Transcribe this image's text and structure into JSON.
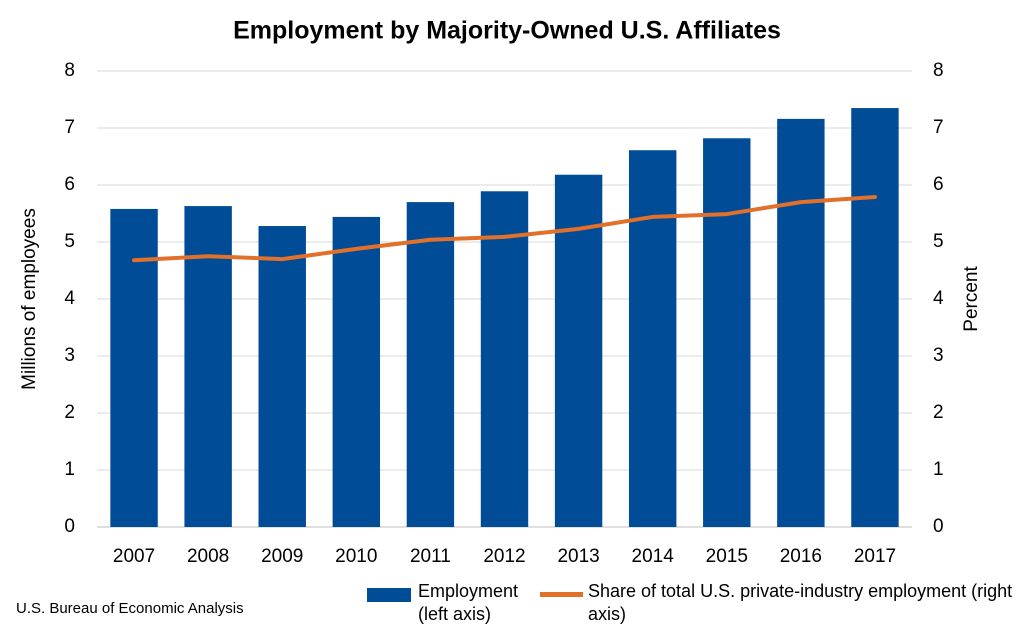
{
  "chart_data": {
    "type": "bar-line",
    "title": "Employment by Majority-Owned U.S. Affiliates",
    "y_label": "Millions of employees",
    "y2_label": "Percent",
    "source": "U.S. Bureau of Economic Analysis",
    "categories": [
      "2007",
      "2008",
      "2009",
      "2010",
      "2011",
      "2012",
      "2013",
      "2014",
      "2015",
      "2016",
      "2017"
    ],
    "series": [
      {
        "name": "Employment (left axis)",
        "type": "bar",
        "color": "#004c97",
        "values": [
          5.58,
          5.63,
          5.28,
          5.44,
          5.7,
          5.89,
          6.18,
          6.61,
          6.82,
          7.16,
          7.35
        ]
      },
      {
        "name": "Share of total U.S. private-industry employment (right axis)",
        "type": "line",
        "axis": "y2",
        "color": "#e0702a",
        "values": [
          4.68,
          4.75,
          4.7,
          4.88,
          5.04,
          5.09,
          5.23,
          5.44,
          5.49,
          5.7,
          5.79
        ]
      }
    ],
    "ylim": [
      0,
      8
    ],
    "yticks": [
      0,
      1,
      2,
      3,
      4,
      5,
      6,
      7,
      8
    ],
    "y2lim": [
      0,
      8
    ],
    "y2ticks": [
      0,
      1,
      2,
      3,
      4,
      5,
      6,
      7,
      8
    ],
    "grid": true
  }
}
